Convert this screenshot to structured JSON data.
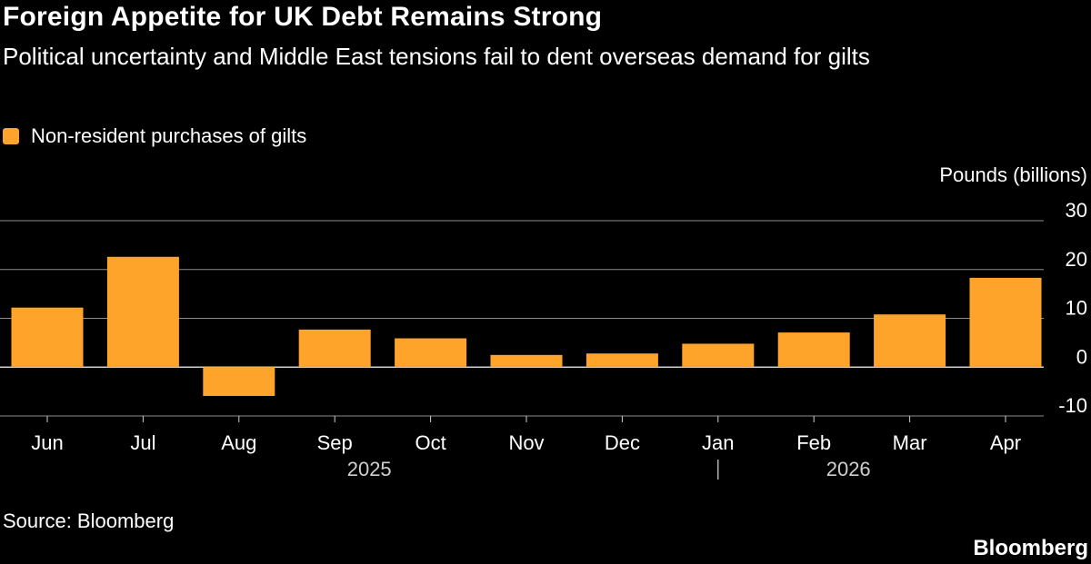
{
  "title": "Foreign Appetite for UK Debt Remains Strong",
  "subtitle": "Political uncertainty and Middle East tensions fail to dent overseas demand for gilts",
  "legend": {
    "label": "Non-resident purchases of gilts",
    "color": "#ffa42b"
  },
  "source": "Source: Bloomberg",
  "brand": "Bloomberg",
  "colors": {
    "background": "#000000",
    "bar": "#ffa42b",
    "grid": "#8c8c8c",
    "text": "#ffffff"
  },
  "chart_data": {
    "type": "bar",
    "ylabel": "Pounds (billions)",
    "ylim": [
      -10,
      30
    ],
    "yticks": [
      30,
      20,
      10,
      0,
      -10
    ],
    "grid": true,
    "legend_position": "top-left",
    "categories": [
      "Jun",
      "Jul",
      "Aug",
      "Sep",
      "Oct",
      "Nov",
      "Dec",
      "Jan",
      "Feb",
      "Mar",
      "Apr"
    ],
    "year_labels": [
      {
        "label": "2025",
        "center_category": "Sep"
      },
      {
        "label": "2026",
        "center_category": "Feb"
      }
    ],
    "year_divider_at": "Jan",
    "series": [
      {
        "name": "Non-resident purchases of gilts",
        "values": [
          12.2,
          22.6,
          -5.9,
          7.7,
          5.9,
          2.5,
          2.8,
          4.8,
          7.1,
          10.8,
          18.3
        ]
      }
    ]
  }
}
